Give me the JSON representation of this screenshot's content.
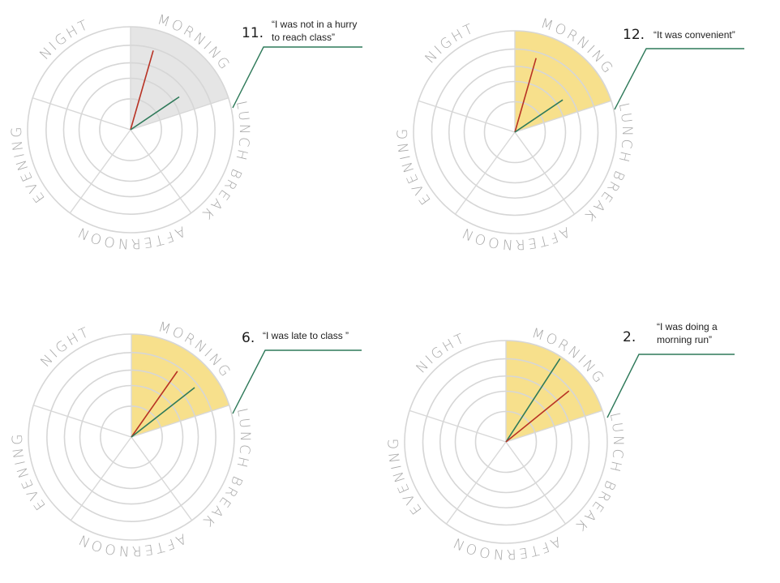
{
  "colors": {
    "gray_sector": "#e5e5e5",
    "yellow_sector": "#f7e08c",
    "red_line": "#b83224",
    "green_line": "#2f7a5a",
    "ring": "#d6d6d6"
  },
  "chart_data": [
    {
      "type": "radial",
      "id": "11",
      "number": "11.",
      "quote": [
        "“I was not in a hurry",
        "to reach class”"
      ],
      "categories": [
        "MORNING",
        "LUNCH BREAK",
        "AFTERNOON",
        "EVENING",
        "NIGHT"
      ],
      "highlight": "MORNING",
      "highlight_color": "gray",
      "lines": [
        {
          "color": "red",
          "angle_deg": 16,
          "value": 0.8
        },
        {
          "color": "green",
          "angle_deg": 56,
          "value": 0.57
        }
      ]
    },
    {
      "type": "radial",
      "id": "12",
      "number": "12.",
      "quote": [
        "“It was convenient”"
      ],
      "categories": [
        "MORNING",
        "LUNCH BREAK",
        "AFTERNOON",
        "EVENING",
        "NIGHT"
      ],
      "highlight": "MORNING",
      "highlight_color": "yellow",
      "lines": [
        {
          "color": "red",
          "angle_deg": 16,
          "value": 0.76
        },
        {
          "color": "green",
          "angle_deg": 56,
          "value": 0.57
        }
      ]
    },
    {
      "type": "radial",
      "id": "6",
      "number": "6.",
      "quote": [
        "“I was late to class ”"
      ],
      "categories": [
        "MORNING",
        "LUNCH BREAK",
        "AFTERNOON",
        "EVENING",
        "NIGHT"
      ],
      "highlight": "MORNING",
      "highlight_color": "yellow",
      "lines": [
        {
          "color": "red",
          "angle_deg": 35,
          "value": 0.78
        },
        {
          "color": "green",
          "angle_deg": 52,
          "value": 0.78
        }
      ]
    },
    {
      "type": "radial",
      "id": "2",
      "number": "2.",
      "quote": [
        "“I was doing a",
        "morning run”"
      ],
      "categories": [
        "MORNING",
        "LUNCH BREAK",
        "AFTERNOON",
        "EVENING",
        "NIGHT"
      ],
      "highlight": "MORNING",
      "highlight_color": "yellow",
      "lines": [
        {
          "color": "green",
          "angle_deg": 33,
          "value": 0.98
        },
        {
          "color": "red",
          "angle_deg": 51,
          "value": 0.8
        }
      ]
    }
  ]
}
